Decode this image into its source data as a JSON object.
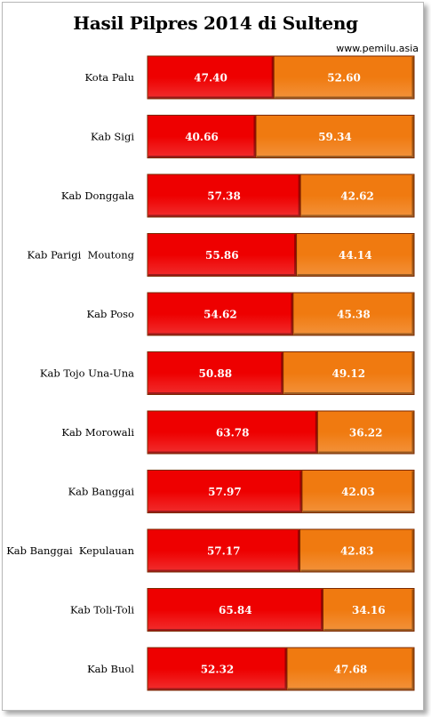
{
  "chart_data": {
    "type": "bar",
    "stacked": "percent",
    "orientation": "horizontal",
    "title": "Hasil Pilpres 2014 di Sulteng",
    "source": "www.pemilu.asia",
    "categories": [
      "Kota Palu",
      "Kab Sigi",
      "Kab Donggala",
      "Kab Parigi  Moutong",
      "Kab Poso",
      "Kab Tojo Una-Una",
      "Kab Morowali",
      "Kab Banggai",
      "Kab Banggai  Kepulauan",
      "Kab Toli-Toli",
      "Kab Buol"
    ],
    "series": [
      {
        "color": "#ee0000",
        "values": [
          47.4,
          40.66,
          57.38,
          55.86,
          54.62,
          50.88,
          63.78,
          57.97,
          57.17,
          65.84,
          52.32
        ]
      },
      {
        "color": "#f07a10",
        "values": [
          52.6,
          59.34,
          42.62,
          44.14,
          45.38,
          49.12,
          36.22,
          42.03,
          42.83,
          34.16,
          47.68
        ]
      }
    ],
    "value_labels": [
      [
        "47.40",
        "52.60"
      ],
      [
        "40.66",
        "59.34"
      ],
      [
        "57.38",
        "42.62"
      ],
      [
        "55.86",
        "44.14"
      ],
      [
        "54.62",
        "45.38"
      ],
      [
        "50.88",
        "49.12"
      ],
      [
        "63.78",
        "36.22"
      ],
      [
        "57.97",
        "42.03"
      ],
      [
        "57.17",
        "42.83"
      ],
      [
        "65.84",
        "34.16"
      ],
      [
        "52.32",
        "47.68"
      ]
    ],
    "xlim": [
      0,
      100
    ],
    "grid": false,
    "legend": "none"
  }
}
